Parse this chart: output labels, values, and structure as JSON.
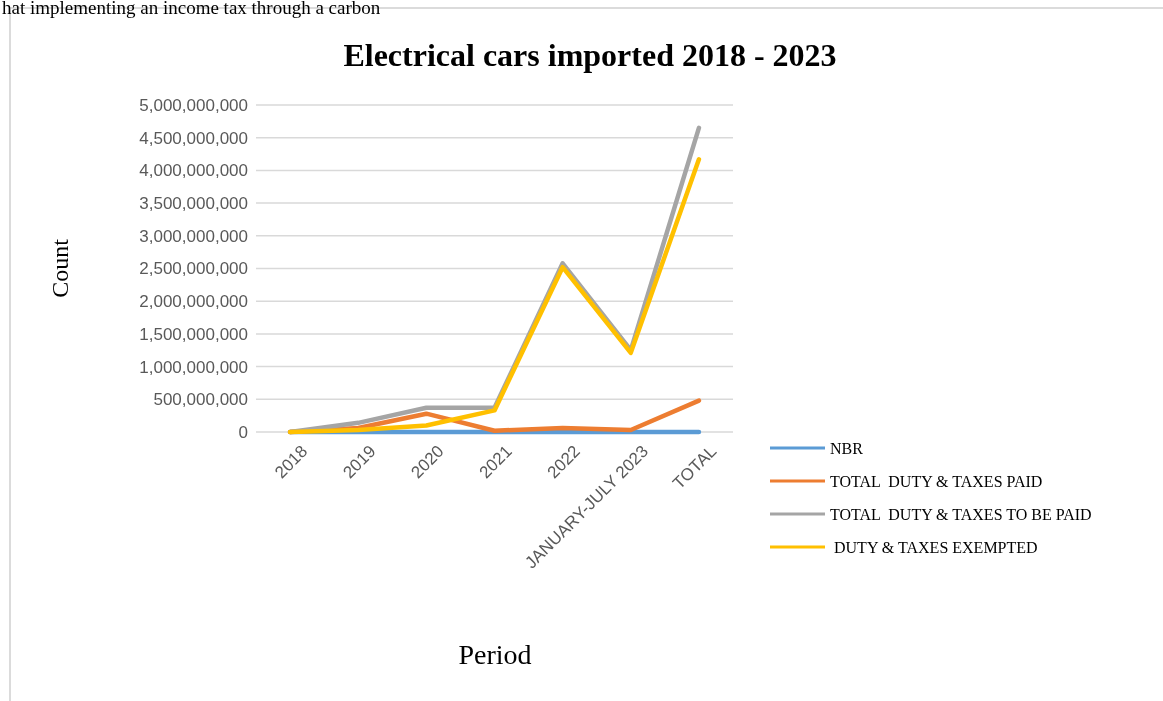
{
  "chart_data": {
    "type": "line",
    "title": "Electrical cars imported 2018 - 2023",
    "xlabel": "Period",
    "ylabel": "Count",
    "annotations": [
      "hat implementing an income tax through a carbon"
    ],
    "categories": [
      "2018",
      "2019",
      "2020",
      "2021",
      "2022",
      "JANUARY-JULY 2023",
      "TOTAL"
    ],
    "series": [
      {
        "name": "NBR",
        "color": "#5b9bd5",
        "values": [
          0,
          0,
          0,
          0,
          0,
          0,
          0
        ]
      },
      {
        "name": "TOTAL  DUTY & TAXES PAID",
        "color": "#ed7d31",
        "values": [
          0,
          60000000,
          280000000,
          20000000,
          60000000,
          30000000,
          480000000
        ]
      },
      {
        "name": "TOTAL  DUTY & TAXES TO BE PAID",
        "color": "#a5a5a5",
        "values": [
          0,
          140000000,
          370000000,
          370000000,
          2580000000,
          1250000000,
          4650000000
        ]
      },
      {
        "name": " DUTY & TAXES EXEMPTED",
        "color": "#ffc000",
        "values": [
          0,
          30000000,
          100000000,
          330000000,
          2520000000,
          1210000000,
          4170000000
        ]
      }
    ],
    "ylim": [
      0,
      5000000000
    ],
    "yticks": [
      {
        "value": 0,
        "label": "0"
      },
      {
        "value": 500000000,
        "label": "500,000,000"
      },
      {
        "value": 1000000000,
        "label": "1,000,000,000"
      },
      {
        "value": 1500000000,
        "label": "1,500,000,000"
      },
      {
        "value": 2000000000,
        "label": "2,000,000,000"
      },
      {
        "value": 2500000000,
        "label": "2,500,000,000"
      },
      {
        "value": 3000000000,
        "label": "3,000,000,000"
      },
      {
        "value": 3500000000,
        "label": "3,500,000,000"
      },
      {
        "value": 4000000000,
        "label": "4,000,000,000"
      },
      {
        "value": 4500000000,
        "label": "4,500,000,000"
      },
      {
        "value": 5000000000,
        "label": "5,000,000,000"
      }
    ],
    "grid": "y",
    "legend": "right",
    "marker": "none",
    "line_style": "solid"
  }
}
